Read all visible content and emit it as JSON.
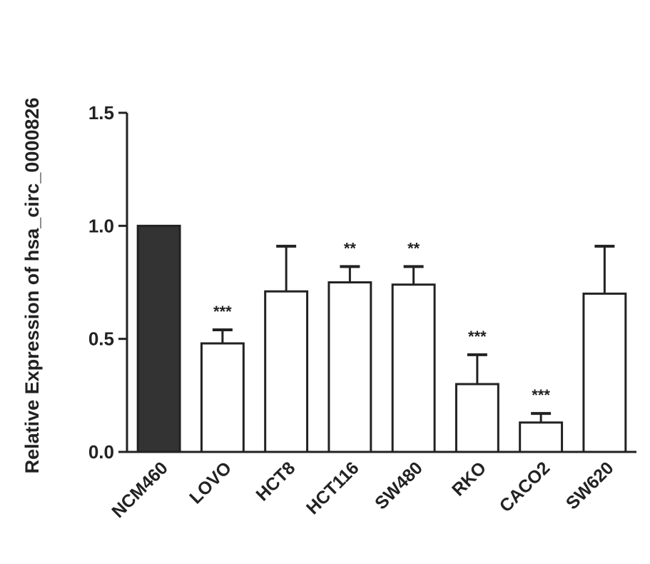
{
  "chart_data": {
    "type": "bar",
    "ylabel": "Relative Expression of  hsa_circ_0000826",
    "categories": [
      "NCM460",
      "LOVO",
      "HCT8",
      "HCT116",
      "SW480",
      "RKO",
      "CACO2",
      "SW620"
    ],
    "values": [
      1.0,
      0.48,
      0.71,
      0.75,
      0.74,
      0.3,
      0.13,
      0.7
    ],
    "errors": [
      null,
      0.06,
      0.2,
      0.07,
      0.08,
      0.13,
      0.04,
      0.21
    ],
    "annotations": [
      null,
      "***",
      null,
      "**",
      "**",
      "***",
      "***",
      null
    ],
    "colors": [
      "#333333",
      "#ffffff",
      "#ffffff",
      "#ffffff",
      "#ffffff",
      "#ffffff",
      "#ffffff",
      "#ffffff"
    ],
    "ylim": [
      0,
      1.5
    ],
    "yticks": [
      {
        "value": 0,
        "label": "0.0"
      },
      0.5,
      {
        "value": 1,
        "label": "1.0"
      },
      1.5
    ]
  }
}
